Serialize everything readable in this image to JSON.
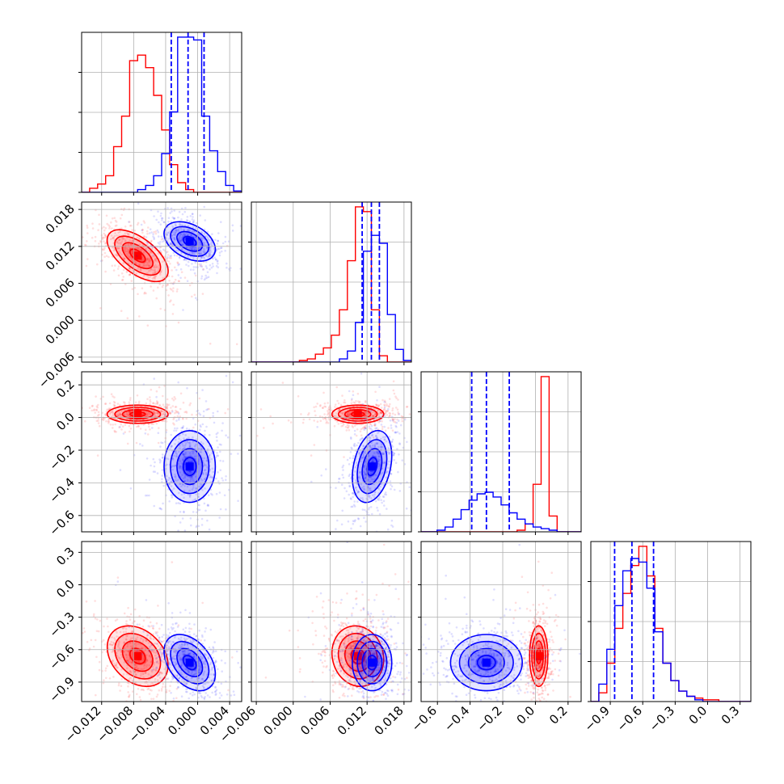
{
  "chart_data": {
    "type": "corner",
    "title": "",
    "parameters": [
      {
        "index": 0,
        "range": [
          -0.0145,
          0.0055
        ],
        "ticks": [
          -0.012,
          -0.008,
          -0.004,
          0.0,
          0.004
        ],
        "tick_labels": [
          "−0.012",
          "−0.008",
          "−0.004",
          "0.000",
          "0.004"
        ]
      },
      {
        "index": 1,
        "range": [
          -0.0068,
          0.0192
        ],
        "ticks": [
          -0.006,
          0.0,
          0.006,
          0.012,
          0.018
        ],
        "tick_labels": [
          "−0.006",
          "0.000",
          "0.006",
          "0.012",
          "0.018"
        ]
      },
      {
        "index": 2,
        "range": [
          -0.7,
          0.28
        ],
        "ticks": [
          -0.6,
          -0.4,
          -0.2,
          0.0,
          0.2
        ],
        "tick_labels": [
          "−0.6",
          "−0.4",
          "−0.2",
          "0.0",
          "0.2"
        ]
      },
      {
        "index": 3,
        "range": [
          -1.08,
          0.4
        ],
        "ticks": [
          -0.9,
          -0.6,
          -0.3,
          0.0,
          0.3
        ],
        "tick_labels": [
          "−0.9",
          "−0.6",
          "−0.3",
          "0.0",
          "0.3"
        ]
      }
    ],
    "series": [
      {
        "color": "#ff0000",
        "mean": [
          -0.0075,
          0.0105,
          0.02,
          -0.66
        ],
        "sd": [
          0.0019,
          0.0021,
          0.028,
          0.14
        ],
        "corr": {
          "0-1": -0.6,
          "0-2": 0.0,
          "0-3": -0.3,
          "1-2": 0.0,
          "1-3": -0.1,
          "2-3": 0.0
        },
        "quantile_lines": []
      },
      {
        "color": "#0000ff",
        "mean": [
          -0.001,
          0.0128,
          -0.3,
          -0.72
        ],
        "sd": [
          0.0016,
          0.0016,
          0.11,
          0.13
        ],
        "corr": {
          "0-1": -0.4,
          "0-2": 0.0,
          "0-3": -0.4,
          "1-2": 0.3,
          "1-3": 0.0,
          "2-3": 0.0
        },
        "quantile_lines": [
          [
            -0.0033,
            -0.0012,
            0.0008
          ],
          [
            0.0112,
            0.0127,
            0.014
          ],
          [
            -0.39,
            -0.3,
            -0.16
          ],
          [
            -0.86,
            -0.7,
            -0.5
          ]
        ]
      }
    ],
    "histograms": [
      [
        {
          "color": "#ff0000",
          "edges": [
            -0.0145,
            -0.0135,
            -0.0125,
            -0.0115,
            -0.0105,
            -0.0095,
            -0.0085,
            -0.0075,
            -0.0065,
            -0.0055,
            -0.0045,
            -0.0035,
            -0.0025,
            -0.0015,
            -0.0005,
            0.0005,
            0.0015,
            0.0025,
            0.0035,
            0.0045,
            0.0055
          ],
          "counts": [
            0.0,
            0.03,
            0.06,
            0.12,
            0.33,
            0.55,
            0.95,
            0.99,
            0.9,
            0.7,
            0.45,
            0.2,
            0.07,
            0.02,
            0.0,
            0.0,
            0.0,
            0.0,
            0.0,
            0.0
          ]
        },
        {
          "color": "#0000ff",
          "edges": [
            -0.0145,
            -0.0135,
            -0.0125,
            -0.0115,
            -0.0105,
            -0.0095,
            -0.0085,
            -0.0075,
            -0.0065,
            -0.0055,
            -0.0045,
            -0.0035,
            -0.0025,
            -0.0015,
            -0.0005,
            0.0005,
            0.0015,
            0.0025,
            0.0035,
            0.0045,
            0.0055
          ],
          "counts": [
            0.0,
            0.0,
            0.0,
            0.0,
            0.0,
            0.0,
            0.0,
            0.02,
            0.05,
            0.12,
            0.28,
            0.58,
            1.12,
            1.12,
            1.1,
            0.55,
            0.3,
            0.15,
            0.05,
            0.01
          ]
        }
      ],
      [
        {
          "color": "#ff0000",
          "edges": [
            -0.0068,
            -0.0055,
            -0.0042,
            -0.0029,
            -0.0016,
            -0.0003,
            0.001,
            0.0023,
            0.0036,
            0.0049,
            0.0062,
            0.0075,
            0.0088,
            0.0101,
            0.0114,
            0.0127,
            0.014,
            0.0153,
            0.0166,
            0.0179,
            0.0192
          ],
          "counts": [
            0.0,
            0.0,
            0.0,
            0.0,
            0.0,
            0.0,
            0.01,
            0.02,
            0.05,
            0.09,
            0.17,
            0.33,
            0.64,
            0.98,
            0.95,
            0.33,
            0.04,
            0.0,
            0.0,
            0.0
          ]
        },
        {
          "color": "#0000ff",
          "edges": [
            -0.0068,
            -0.0055,
            -0.0042,
            -0.0029,
            -0.0016,
            -0.0003,
            0.001,
            0.0023,
            0.0036,
            0.0049,
            0.0062,
            0.0075,
            0.0088,
            0.0101,
            0.0114,
            0.0127,
            0.014,
            0.0153,
            0.0166,
            0.0179,
            0.0192
          ],
          "counts": [
            0.0,
            0.0,
            0.0,
            0.0,
            0.0,
            0.0,
            0.0,
            0.0,
            0.0,
            0.0,
            0.0,
            0.02,
            0.07,
            0.25,
            0.7,
            0.8,
            0.75,
            0.3,
            0.08,
            0.01
          ]
        }
      ],
      [
        {
          "color": "#ff0000",
          "edges": [
            -0.7,
            -0.651,
            -0.602,
            -0.553,
            -0.504,
            -0.455,
            -0.406,
            -0.357,
            -0.308,
            -0.259,
            -0.21,
            -0.161,
            -0.112,
            -0.063,
            -0.014,
            0.035,
            0.084,
            0.133,
            0.182,
            0.231,
            0.28
          ],
          "counts": [
            0.0,
            0.0,
            0.0,
            0.0,
            0.0,
            0.0,
            0.0,
            0.0,
            0.0,
            0.0,
            0.0,
            0.0,
            0.01,
            0.05,
            0.3,
            0.98,
            0.1,
            0.0,
            0.0,
            0.0
          ]
        },
        {
          "color": "#0000ff",
          "edges": [
            -0.7,
            -0.651,
            -0.602,
            -0.553,
            -0.504,
            -0.455,
            -0.406,
            -0.357,
            -0.308,
            -0.259,
            -0.21,
            -0.161,
            -0.112,
            -0.063,
            -0.014,
            0.035,
            0.084,
            0.133,
            0.182,
            0.231,
            0.28
          ],
          "counts": [
            0.0,
            0.0,
            0.01,
            0.03,
            0.08,
            0.14,
            0.2,
            0.24,
            0.25,
            0.22,
            0.17,
            0.12,
            0.08,
            0.05,
            0.03,
            0.02,
            0.01,
            0.0,
            0.0,
            0.0
          ]
        }
      ],
      [
        {
          "color": "#ff0000",
          "edges": [
            -1.08,
            -1.006,
            -0.932,
            -0.858,
            -0.784,
            -0.71,
            -0.636,
            -0.562,
            -0.488,
            -0.414,
            -0.34,
            -0.266,
            -0.192,
            -0.118,
            -0.044,
            0.03,
            0.104,
            0.178,
            0.252,
            0.326,
            0.4
          ],
          "counts": [
            0.0,
            0.05,
            0.22,
            0.42,
            0.62,
            0.78,
            0.89,
            0.72,
            0.42,
            0.22,
            0.12,
            0.06,
            0.03,
            0.02,
            0.01,
            0.01,
            0.0,
            0.0,
            0.0,
            0.0
          ]
        },
        {
          "color": "#0000ff",
          "edges": [
            -1.08,
            -1.006,
            -0.932,
            -0.858,
            -0.784,
            -0.71,
            -0.636,
            -0.562,
            -0.488,
            -0.414,
            -0.34,
            -0.266,
            -0.192,
            -0.118,
            -0.044,
            0.03,
            0.104,
            0.178,
            0.252,
            0.326,
            0.4
          ],
          "counts": [
            0.0,
            0.1,
            0.3,
            0.55,
            0.75,
            0.82,
            0.8,
            0.65,
            0.4,
            0.22,
            0.12,
            0.06,
            0.03,
            0.01,
            0.0,
            0.0,
            0.0,
            0.0,
            0.0,
            0.0
          ]
        }
      ]
    ],
    "grid": true,
    "legend": "none"
  }
}
